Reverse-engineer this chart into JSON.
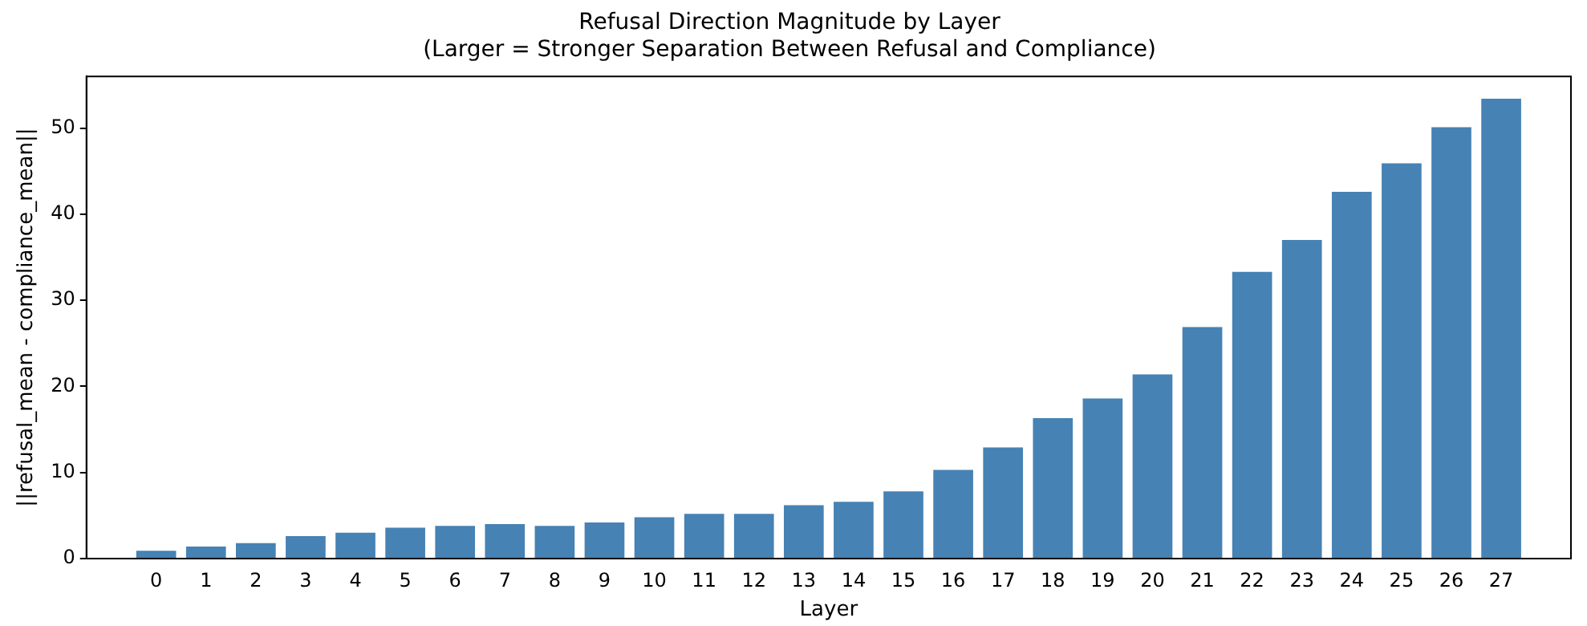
{
  "chart_data": {
    "type": "bar",
    "title": "Refusal Direction Magnitude by Layer",
    "subtitle": "(Larger = Stronger Separation Between Refusal and Compliance)",
    "xlabel": "Layer",
    "ylabel": "||refusal_mean - compliance_mean||",
    "x": [
      0,
      1,
      2,
      3,
      4,
      5,
      6,
      7,
      8,
      9,
      10,
      11,
      12,
      13,
      14,
      15,
      16,
      17,
      18,
      19,
      20,
      21,
      22,
      23,
      24,
      25,
      26,
      27
    ],
    "xlim": [
      -1.4,
      28.4
    ],
    "xticks": [
      0,
      1,
      2,
      3,
      4,
      5,
      6,
      7,
      8,
      9,
      10,
      11,
      12,
      13,
      14,
      15,
      16,
      17,
      18,
      19,
      20,
      21,
      22,
      23,
      24,
      25,
      26,
      27
    ],
    "values": [
      0.9,
      1.4,
      1.8,
      2.6,
      3.0,
      3.6,
      3.8,
      4.0,
      3.8,
      4.2,
      4.8,
      5.2,
      5.2,
      6.2,
      6.6,
      7.8,
      10.3,
      12.9,
      16.3,
      18.6,
      21.4,
      26.9,
      33.3,
      37.0,
      42.6,
      45.9,
      50.1,
      53.4
    ],
    "color": "#4682b4",
    "ylim": [
      0,
      56
    ],
    "yticks": [
      0,
      10,
      20,
      30,
      40,
      50
    ],
    "grid": false,
    "legend": false
  }
}
